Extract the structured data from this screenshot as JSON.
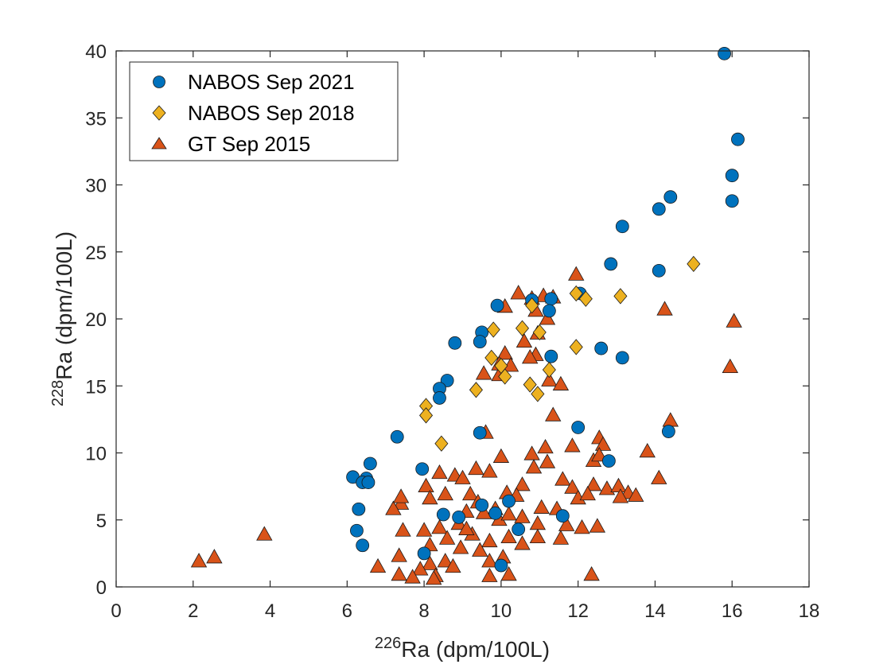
{
  "chart_data": {
    "type": "scatter",
    "xlabel": {
      "sup": "226",
      "main": "Ra (dpm/100L)"
    },
    "ylabel": {
      "sup": "228",
      "main": "Ra (dpm/100L)"
    },
    "xlim": [
      0,
      18
    ],
    "ylim": [
      0,
      40
    ],
    "xticks": [
      0,
      2,
      4,
      6,
      8,
      10,
      12,
      14,
      16,
      18
    ],
    "yticks": [
      0,
      5,
      10,
      15,
      20,
      25,
      30,
      35,
      40
    ],
    "grid": false,
    "legend_position": "top-left",
    "series": [
      {
        "name": "NABOS Sep 2021",
        "marker": "circle",
        "color": "#0072BD",
        "points": [
          [
            15.8,
            39.8
          ],
          [
            16.15,
            33.4
          ],
          [
            16.0,
            30.7
          ],
          [
            16.0,
            28.8
          ],
          [
            14.4,
            29.1
          ],
          [
            14.1,
            28.2
          ],
          [
            13.15,
            26.9
          ],
          [
            14.1,
            23.6
          ],
          [
            12.85,
            24.1
          ],
          [
            12.05,
            21.9
          ],
          [
            11.3,
            21.5
          ],
          [
            10.8,
            21.4
          ],
          [
            9.9,
            21.0
          ],
          [
            11.25,
            20.6
          ],
          [
            9.5,
            19.0
          ],
          [
            9.45,
            18.3
          ],
          [
            8.8,
            18.2
          ],
          [
            12.6,
            17.8
          ],
          [
            13.15,
            17.1
          ],
          [
            11.3,
            17.2
          ],
          [
            8.6,
            15.4
          ],
          [
            8.4,
            14.8
          ],
          [
            8.4,
            14.1
          ],
          [
            9.45,
            11.5
          ],
          [
            7.3,
            11.2
          ],
          [
            12.0,
            11.9
          ],
          [
            14.35,
            11.6
          ],
          [
            12.8,
            9.4
          ],
          [
            6.6,
            9.2
          ],
          [
            7.95,
            8.8
          ],
          [
            6.15,
            8.2
          ],
          [
            6.5,
            8.1
          ],
          [
            6.4,
            7.8
          ],
          [
            6.55,
            7.8
          ],
          [
            6.3,
            5.8
          ],
          [
            9.5,
            6.1
          ],
          [
            8.5,
            5.4
          ],
          [
            8.9,
            5.2
          ],
          [
            6.25,
            4.2
          ],
          [
            10.45,
            4.3
          ],
          [
            6.4,
            3.1
          ],
          [
            9.85,
            5.5
          ],
          [
            11.6,
            5.3
          ],
          [
            10.0,
            1.6
          ],
          [
            8.0,
            2.5
          ],
          [
            10.2,
            6.4
          ]
        ]
      },
      {
        "name": "NABOS Sep 2018",
        "marker": "diamond",
        "color": "#EDB120",
        "points": [
          [
            15.0,
            24.1
          ],
          [
            13.1,
            21.7
          ],
          [
            12.2,
            21.5
          ],
          [
            11.95,
            21.9
          ],
          [
            10.8,
            21.0
          ],
          [
            9.8,
            19.2
          ],
          [
            10.55,
            19.3
          ],
          [
            11.0,
            19.0
          ],
          [
            11.95,
            17.9
          ],
          [
            9.75,
            17.1
          ],
          [
            10.0,
            16.5
          ],
          [
            11.25,
            16.2
          ],
          [
            10.1,
            15.7
          ],
          [
            10.75,
            15.1
          ],
          [
            9.35,
            14.7
          ],
          [
            10.95,
            14.4
          ],
          [
            8.05,
            13.5
          ],
          [
            8.05,
            12.8
          ],
          [
            8.45,
            10.7
          ]
        ]
      },
      {
        "name": "GT Sep 2015",
        "marker": "triangle",
        "color": "#D95319",
        "points": [
          [
            2.15,
            1.9
          ],
          [
            2.55,
            2.2
          ],
          [
            3.85,
            3.9
          ],
          [
            11.95,
            23.3
          ],
          [
            10.45,
            21.9
          ],
          [
            10.8,
            21.5
          ],
          [
            11.1,
            21.7
          ],
          [
            11.35,
            21.6
          ],
          [
            10.1,
            20.9
          ],
          [
            10.9,
            20.6
          ],
          [
            11.2,
            20.0
          ],
          [
            14.25,
            20.7
          ],
          [
            16.05,
            19.8
          ],
          [
            10.95,
            18.9
          ],
          [
            10.6,
            18.3
          ],
          [
            10.1,
            17.4
          ],
          [
            10.9,
            17.3
          ],
          [
            9.95,
            16.6
          ],
          [
            10.75,
            17.1
          ],
          [
            10.25,
            16.5
          ],
          [
            9.95,
            15.8
          ],
          [
            9.55,
            15.9
          ],
          [
            11.25,
            15.4
          ],
          [
            11.55,
            15.1
          ],
          [
            11.35,
            12.8
          ],
          [
            15.95,
            16.4
          ],
          [
            14.4,
            12.4
          ],
          [
            12.55,
            11.1
          ],
          [
            12.65,
            10.6
          ],
          [
            11.85,
            10.5
          ],
          [
            11.15,
            10.4
          ],
          [
            13.8,
            10.1
          ],
          [
            9.6,
            11.5
          ],
          [
            10.0,
            9.7
          ],
          [
            10.8,
            9.9
          ],
          [
            9.35,
            8.8
          ],
          [
            8.4,
            8.5
          ],
          [
            8.8,
            8.3
          ],
          [
            9.0,
            8.1
          ],
          [
            9.7,
            8.6
          ],
          [
            10.85,
            8.9
          ],
          [
            11.2,
            9.3
          ],
          [
            11.6,
            8.0
          ],
          [
            12.4,
            9.4
          ],
          [
            12.55,
            9.8
          ],
          [
            14.1,
            8.1
          ],
          [
            11.85,
            7.4
          ],
          [
            12.4,
            7.6
          ],
          [
            8.05,
            7.5
          ],
          [
            8.55,
            6.9
          ],
          [
            8.15,
            6.6
          ],
          [
            7.4,
            6.2
          ],
          [
            7.2,
            5.8
          ],
          [
            7.4,
            6.7
          ],
          [
            9.2,
            6.9
          ],
          [
            9.4,
            6.3
          ],
          [
            10.15,
            7.0
          ],
          [
            10.55,
            7.6
          ],
          [
            10.4,
            6.8
          ],
          [
            11.05,
            5.9
          ],
          [
            11.45,
            5.8
          ],
          [
            12.0,
            6.6
          ],
          [
            12.25,
            6.9
          ],
          [
            12.75,
            7.3
          ],
          [
            13.05,
            7.5
          ],
          [
            13.3,
            7.0
          ],
          [
            13.5,
            6.8
          ],
          [
            9.85,
            5.8
          ],
          [
            9.55,
            5.5
          ],
          [
            9.1,
            5.6
          ],
          [
            8.9,
            4.7
          ],
          [
            8.4,
            4.4
          ],
          [
            8.0,
            4.2
          ],
          [
            7.45,
            4.2
          ],
          [
            8.15,
            3.1
          ],
          [
            8.6,
            3.6
          ],
          [
            9.25,
            3.9
          ],
          [
            9.95,
            5.0
          ],
          [
            10.2,
            5.4
          ],
          [
            10.55,
            5.2
          ],
          [
            10.95,
            4.7
          ],
          [
            11.7,
            4.6
          ],
          [
            12.1,
            4.4
          ],
          [
            12.5,
            4.5
          ],
          [
            13.1,
            6.7
          ],
          [
            11.55,
            3.6
          ],
          [
            10.95,
            3.7
          ],
          [
            10.55,
            3.2
          ],
          [
            10.2,
            3.7
          ],
          [
            9.7,
            3.4
          ],
          [
            9.45,
            2.7
          ],
          [
            8.95,
            2.9
          ],
          [
            8.55,
            1.9
          ],
          [
            8.15,
            1.7
          ],
          [
            7.9,
            1.3
          ],
          [
            7.7,
            0.7
          ],
          [
            7.35,
            0.9
          ],
          [
            6.8,
            1.5
          ],
          [
            8.3,
            0.8
          ],
          [
            8.75,
            1.5
          ],
          [
            9.7,
            1.9
          ],
          [
            10.05,
            2.2
          ],
          [
            9.7,
            0.8
          ],
          [
            10.2,
            0.9
          ],
          [
            12.35,
            0.9
          ],
          [
            7.35,
            2.3
          ],
          [
            8.25,
            0.6
          ],
          [
            9.1,
            4.3
          ]
        ]
      }
    ]
  }
}
